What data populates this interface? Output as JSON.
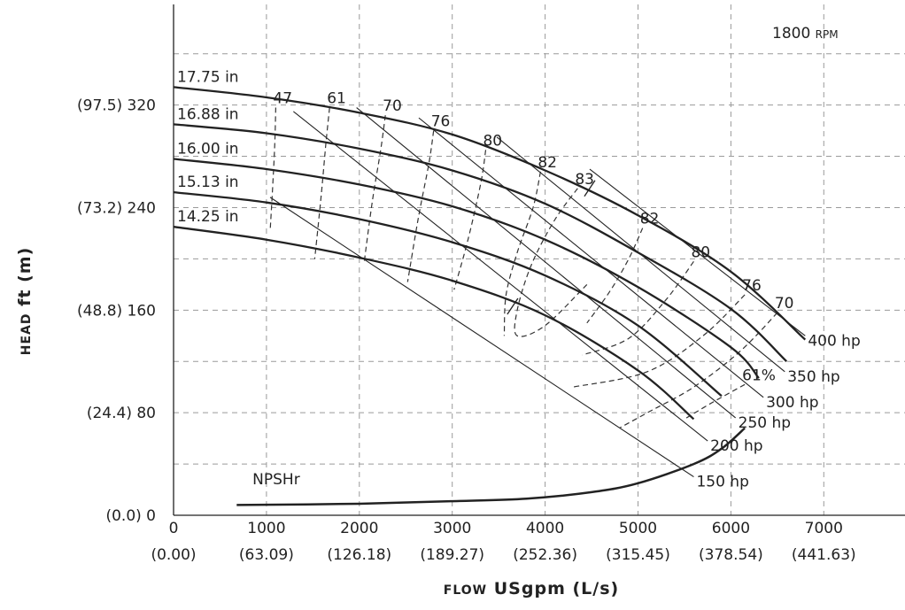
{
  "chart_data": {
    "type": "line",
    "title": "",
    "speed": {
      "value": "1800",
      "unit": "RPM"
    },
    "xlabel": {
      "small_caps": "FLOW",
      "text": "USgpm (L/s)"
    },
    "ylabel": {
      "small_caps": "HEAD",
      "text": "ft (m)"
    },
    "xlim": [
      0,
      7800
    ],
    "ylim": [
      0,
      390
    ],
    "grid": true,
    "x_ticks": [
      {
        "value": 0,
        "label": "0",
        "sublabel": "(0.00)"
      },
      {
        "value": 1000,
        "label": "1000",
        "sublabel": "(63.09)"
      },
      {
        "value": 2000,
        "label": "2000",
        "sublabel": "(126.18)"
      },
      {
        "value": 3000,
        "label": "3000",
        "sublabel": "(189.27)"
      },
      {
        "value": 4000,
        "label": "4000",
        "sublabel": "(252.36)"
      },
      {
        "value": 5000,
        "label": "5000",
        "sublabel": "(315.45)"
      },
      {
        "value": 6000,
        "label": "6000",
        "sublabel": "(378.54)"
      },
      {
        "value": 7000,
        "label": "7000",
        "sublabel": "(441.63)"
      }
    ],
    "y_ticks": [
      {
        "value": 0,
        "label": "(0.0) 0"
      },
      {
        "value": 80,
        "label": "(24.4) 80"
      },
      {
        "value": 160,
        "label": "(48.8) 160"
      },
      {
        "value": 240,
        "label": "(73.2) 240"
      },
      {
        "value": 320,
        "label": "(97.5) 320"
      }
    ],
    "head_curves": [
      {
        "name": "17.75 in",
        "points": [
          [
            0,
            334
          ],
          [
            1000,
            326
          ],
          [
            2000,
            314
          ],
          [
            3000,
            297
          ],
          [
            4000,
            269
          ],
          [
            5000,
            234
          ],
          [
            6000,
            190
          ],
          [
            6800,
            137
          ]
        ]
      },
      {
        "name": "16.88 in",
        "points": [
          [
            0,
            305
          ],
          [
            1000,
            298
          ],
          [
            2000,
            286
          ],
          [
            3000,
            269
          ],
          [
            4000,
            243
          ],
          [
            5000,
            205
          ],
          [
            6000,
            161
          ],
          [
            6600,
            120
          ]
        ]
      },
      {
        "name": "16.00 in",
        "points": [
          [
            0,
            278
          ],
          [
            1000,
            270
          ],
          [
            2000,
            258
          ],
          [
            3000,
            241
          ],
          [
            4000,
            215
          ],
          [
            5000,
            178
          ],
          [
            6000,
            131
          ],
          [
            6300,
            107
          ]
        ]
      },
      {
        "name": "15.13 in",
        "points": [
          [
            0,
            252
          ],
          [
            1000,
            244
          ],
          [
            2000,
            231
          ],
          [
            3000,
            213
          ],
          [
            4000,
            187
          ],
          [
            5000,
            148
          ],
          [
            5900,
            93
          ]
        ]
      },
      {
        "name": "14.25 in",
        "points": [
          [
            0,
            225
          ],
          [
            1000,
            215
          ],
          [
            2000,
            201
          ],
          [
            3000,
            183
          ],
          [
            4000,
            156
          ],
          [
            5000,
            113
          ],
          [
            5600,
            75
          ]
        ]
      }
    ],
    "efficiency_contours": [
      {
        "label": "47",
        "points": [
          [
            1100,
            318
          ],
          [
            1090,
            290
          ],
          [
            1070,
            260
          ],
          [
            1040,
            222
          ]
        ]
      },
      {
        "label": "61",
        "points": [
          [
            1680,
            318
          ],
          [
            1640,
            290
          ],
          [
            1590,
            250
          ],
          [
            1520,
            200
          ]
        ]
      },
      {
        "label": "70",
        "points": [
          [
            2280,
            312
          ],
          [
            2230,
            285
          ],
          [
            2140,
            245
          ],
          [
            2050,
            196
          ]
        ]
      },
      {
        "label": "76",
        "points": [
          [
            2800,
            300
          ],
          [
            2750,
            275
          ],
          [
            2630,
            230
          ],
          [
            2520,
            182
          ]
        ]
      },
      {
        "label": "80",
        "points": [
          [
            3360,
            285
          ],
          [
            3310,
            260
          ],
          [
            3170,
            215
          ],
          [
            3020,
            176
          ]
        ]
      },
      {
        "label": "82",
        "points": [
          [
            3950,
            268
          ],
          [
            3870,
            240
          ],
          [
            3700,
            205
          ],
          [
            3580,
            172
          ],
          [
            3560,
            140
          ]
        ]
      },
      {
        "label": "83",
        "points": [
          [
            4350,
            255
          ],
          [
            4100,
            230
          ],
          [
            3850,
            195
          ],
          [
            3700,
            160
          ],
          [
            3700,
            140
          ],
          [
            4000,
            148
          ],
          [
            4450,
            180
          ]
        ]
      },
      {
        "label": "82",
        "points": [
          [
            5050,
            224
          ],
          [
            4900,
            200
          ],
          [
            4700,
            175
          ],
          [
            4450,
            150
          ]
        ]
      },
      {
        "label": "80",
        "points": [
          [
            5600,
            198
          ],
          [
            5300,
            168
          ],
          [
            4900,
            138
          ],
          [
            4400,
            125
          ]
        ]
      },
      {
        "label": "76",
        "points": [
          [
            6150,
            172
          ],
          [
            5700,
            140
          ],
          [
            5100,
            112
          ],
          [
            4300,
            100
          ]
        ]
      },
      {
        "label": "70",
        "points": [
          [
            6500,
            158
          ],
          [
            6100,
            128
          ],
          [
            5600,
            100
          ],
          [
            5100,
            80
          ],
          [
            4800,
            68
          ]
        ]
      },
      {
        "label": "61%",
        "points": [
          [
            6150,
            102
          ],
          [
            5800,
            88
          ],
          [
            5500,
            75
          ]
        ]
      }
    ],
    "power_lines": [
      {
        "label": "400 hp",
        "points": [
          [
            4480,
            270
          ],
          [
            6800,
            140
          ]
        ]
      },
      {
        "label": "350 hp",
        "points": [
          [
            3480,
            295
          ],
          [
            6580,
            112
          ]
        ]
      },
      {
        "label": "300 hp",
        "points": [
          [
            2640,
            310
          ],
          [
            6350,
            92
          ]
        ]
      },
      {
        "label": "250 hp",
        "points": [
          [
            1970,
            318
          ],
          [
            6050,
            76
          ]
        ]
      },
      {
        "label": "200 hp",
        "points": [
          [
            1290,
            315
          ],
          [
            5750,
            58
          ]
        ]
      },
      {
        "label": "150 hp",
        "points": [
          [
            1040,
            248
          ],
          [
            5600,
            30
          ]
        ]
      }
    ],
    "npshr": {
      "label": "NPSHr",
      "points": [
        [
          680,
          8
        ],
        [
          2000,
          9
        ],
        [
          3000,
          11
        ],
        [
          3800,
          13
        ],
        [
          4500,
          18
        ],
        [
          5000,
          25
        ],
        [
          5600,
          40
        ],
        [
          5900,
          52
        ],
        [
          6150,
          68
        ]
      ]
    }
  }
}
